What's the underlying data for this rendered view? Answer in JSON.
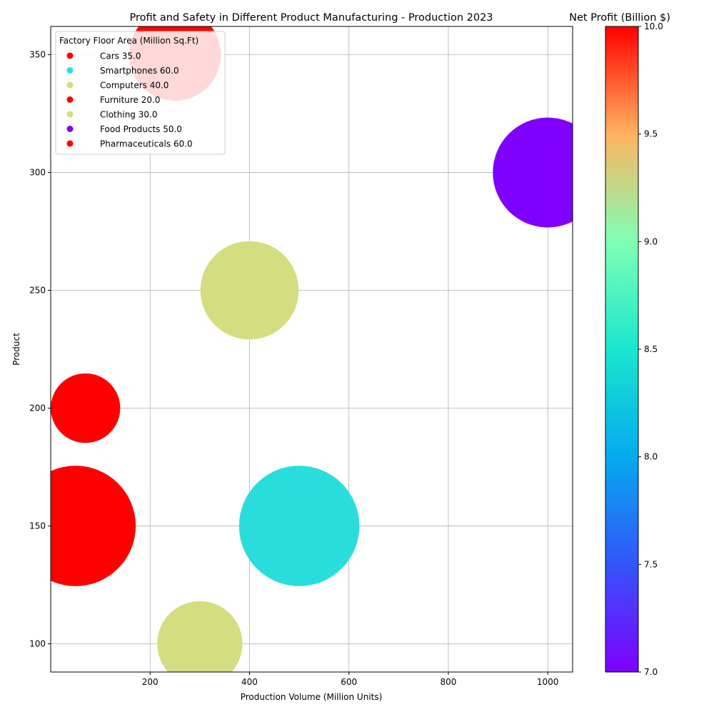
{
  "chart_data": {
    "type": "scatter",
    "title": "Profit and Safety in Different Product Manufacturing - Production 2023",
    "xlabel": "Production Volume (Million Units)",
    "ylabel": "Product",
    "xlim": [
      0,
      1050
    ],
    "ylim": [
      88,
      362
    ],
    "x_ticks": [
      200,
      400,
      600,
      800,
      1000
    ],
    "y_ticks": [
      100,
      150,
      200,
      250,
      300,
      350
    ],
    "grid": true,
    "legend_title": "Factory Floor Area (Million Sq.Ft)",
    "legend_placement": "top-left",
    "colorbar": {
      "label": "Net Profit (Billion $)",
      "range": [
        7.0,
        10.0
      ],
      "ticks": [
        7.0,
        7.5,
        8.0,
        8.5,
        9.0,
        9.5,
        10.0
      ],
      "colormap": "rainbow"
    },
    "series": [
      {
        "name": "Cars 35.0",
        "x": 250,
        "y": 350,
        "area": 35.0,
        "profit": 10.0,
        "color": "#ff0000"
      },
      {
        "name": "Smartphones 60.0",
        "x": 500,
        "y": 150,
        "area": 60.0,
        "profit": 8.0,
        "color": "#2adddd"
      },
      {
        "name": "Computers 40.0",
        "x": 400,
        "y": 250,
        "area": 40.0,
        "profit": 9.0,
        "color": "#d4dd80"
      },
      {
        "name": "Furniture 20.0",
        "x": 70,
        "y": 200,
        "area": 20.0,
        "profit": 10.0,
        "color": "#ff0000"
      },
      {
        "name": "Clothing 30.0",
        "x": 300,
        "y": 100,
        "area": 30.0,
        "profit": 9.0,
        "color": "#d4dd80"
      },
      {
        "name": "Food Products 50.0",
        "x": 1000,
        "y": 300,
        "area": 50.0,
        "profit": 7.0,
        "color": "#8000ff"
      },
      {
        "name": "Pharmaceuticals 60.0",
        "x": 50,
        "y": 150,
        "area": 60.0,
        "profit": 10.0,
        "color": "#ff0000"
      }
    ]
  }
}
